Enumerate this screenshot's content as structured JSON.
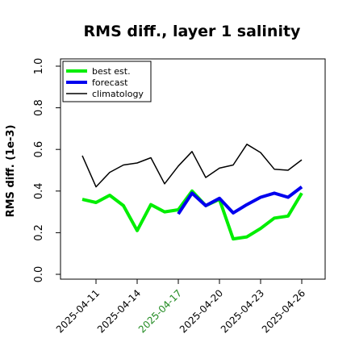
{
  "chart_data": {
    "type": "line",
    "title": "RMS diff., layer 1 salinity",
    "xlabel": "",
    "ylabel": "RMS diff. (1e-3)",
    "ylim": [
      0.0,
      1.0
    ],
    "yticks": [
      "0.0",
      "0.2",
      "0.4",
      "0.6",
      "0.8",
      "1.0"
    ],
    "x": [
      "2025-04-10",
      "2025-04-11",
      "2025-04-12",
      "2025-04-13",
      "2025-04-14",
      "2025-04-15",
      "2025-04-16",
      "2025-04-17",
      "2025-04-18",
      "2025-04-19",
      "2025-04-20",
      "2025-04-21",
      "2025-04-22",
      "2025-04-23",
      "2025-04-24",
      "2025-04-25",
      "2025-04-26"
    ],
    "xticks": [
      "2025-04-11",
      "2025-04-14",
      "2025-04-17",
      "2025-04-20",
      "2025-04-23",
      "2025-04-26"
    ],
    "xtick_colors": [
      "#000000",
      "#000000",
      "#228B22",
      "#000000",
      "#000000",
      "#000000"
    ],
    "legend_position": "top-left",
    "grid": false,
    "series": [
      {
        "name": "best est.",
        "color": "#00ee00",
        "values": [
          0.36,
          0.345,
          0.38,
          0.33,
          0.21,
          0.335,
          0.3,
          0.31,
          0.4,
          0.33,
          0.36,
          0.17,
          0.18,
          0.22,
          0.27,
          0.28,
          0.39
        ]
      },
      {
        "name": "forecast",
        "color": "#0000ee",
        "values": [
          null,
          null,
          null,
          null,
          null,
          null,
          null,
          0.29,
          0.39,
          0.33,
          0.365,
          0.295,
          0.335,
          0.37,
          0.39,
          0.37,
          0.42
        ]
      },
      {
        "name": "climatology",
        "color": "#000000",
        "values": [
          0.57,
          0.42,
          0.49,
          0.525,
          0.535,
          0.56,
          0.435,
          0.52,
          0.59,
          0.465,
          0.51,
          0.525,
          0.625,
          0.585,
          0.505,
          0.5,
          0.55
        ]
      }
    ]
  }
}
